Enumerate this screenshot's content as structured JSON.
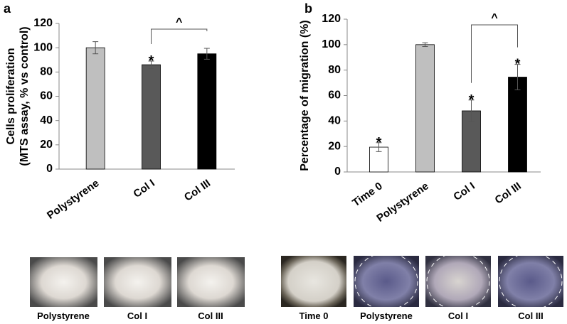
{
  "chart_data": [
    {
      "type": "bar",
      "panel_label": "a",
      "ylabel": [
        "Cells proliferation",
        "(MTS assay, % vs control)"
      ],
      "categories": [
        "Polystyrene",
        "Col I",
        "Col III"
      ],
      "values": [
        100,
        86,
        95
      ],
      "errors": [
        5,
        3,
        4.5
      ],
      "colors": [
        "#bfbfbf",
        "#595959",
        "#000000"
      ],
      "markers": [
        null,
        "*",
        null
      ],
      "bracket": {
        "text": "^",
        "from": 1,
        "to": 2
      },
      "ylim": [
        0,
        120
      ],
      "yticks": [
        0,
        20,
        40,
        60,
        80,
        100,
        120
      ],
      "grid": false
    },
    {
      "type": "bar",
      "panel_label": "b",
      "ylabel": [
        "Percentage of migration (%)"
      ],
      "categories": [
        "Time 0",
        "Polystyrene",
        "Col I",
        "Col III"
      ],
      "values": [
        19.5,
        100,
        48,
        74.5
      ],
      "errors": [
        3.5,
        1.5,
        8.5,
        10
      ],
      "colors": [
        "#ffffff",
        "#bfbfbf",
        "#595959",
        "#000000"
      ],
      "markers": [
        "*",
        null,
        "*",
        "*"
      ],
      "bracket": {
        "text": "^",
        "from": 2,
        "to": 3
      },
      "ylim": [
        0,
        120
      ],
      "yticks": [
        0,
        20,
        40,
        60,
        80,
        100,
        120
      ],
      "grid": false
    }
  ],
  "image_panels": [
    {
      "captions": [
        "Polystyrene",
        "Col I",
        "Col III"
      ]
    },
    {
      "captions": [
        "Time 0",
        "Polystyrene",
        "Col I",
        "Col III"
      ]
    }
  ]
}
